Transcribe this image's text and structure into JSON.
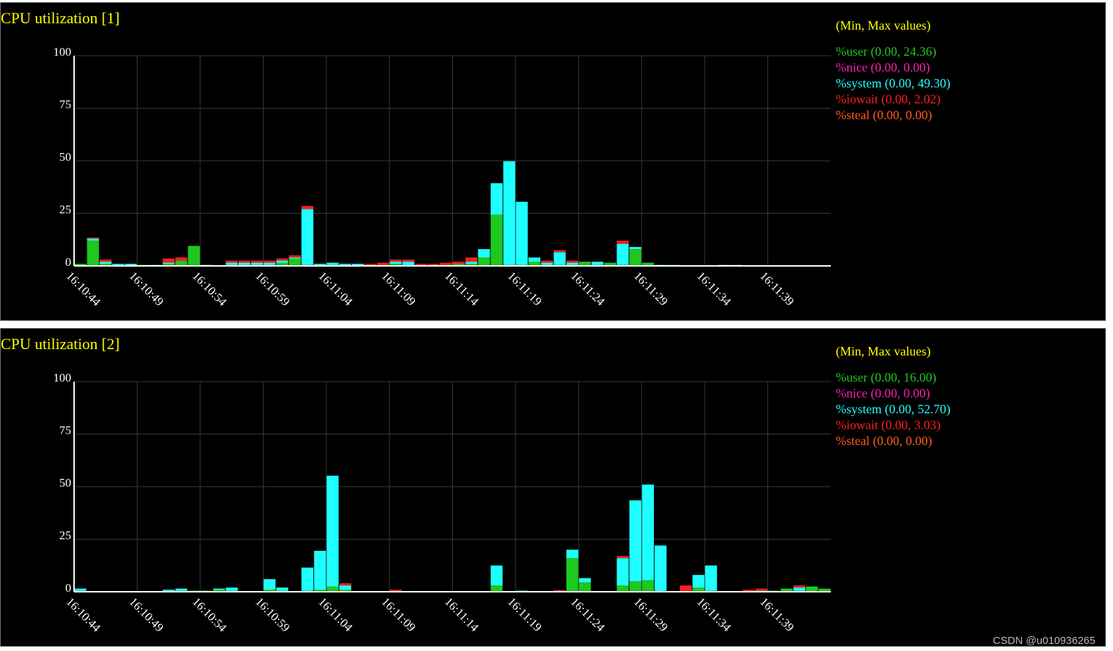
{
  "colors": {
    "title": "#ffff00",
    "user": "#1ec81e",
    "nice": "#ff1eb4",
    "system": "#1effff",
    "iowait": "#ff1e1e",
    "steal": "#ff5a1e",
    "axis": "#ffffff",
    "grid": "#3a3a3a"
  },
  "watermark": "CSDN @u010936265",
  "chart_data": [
    {
      "type": "bar",
      "stacked": true,
      "title": "CPU utilization [1]",
      "legend_title": "(Min, Max values)",
      "legend_placement": "right",
      "grid": true,
      "ylim": [
        0,
        100
      ],
      "yticks": [
        "100",
        "75",
        "50",
        "25",
        "0"
      ],
      "xticks": [
        "16:10:44",
        "16:10:49",
        "16:10:54",
        "16:10:59",
        "16:11:04",
        "16:11:09",
        "16:11:14",
        "16:11:19",
        "16:11:24",
        "16:11:29",
        "16:11:34",
        "16:11:39"
      ],
      "series": [
        {
          "key": "user",
          "name": "%user (0.00, 24.36)",
          "values": [
            1,
            12,
            1,
            0.5,
            0,
            0.5,
            0.5,
            1,
            2.5,
            9.5,
            0.5,
            0,
            0.5,
            0.5,
            0.5,
            0.5,
            1.5,
            3.5,
            0.5,
            0.5,
            0.5,
            0.5,
            0,
            0,
            0.5,
            1,
            0,
            0,
            0,
            0.5,
            1,
            1,
            4,
            24.36,
            0.5,
            0.5,
            2,
            0.5,
            0.5,
            0.5,
            2,
            0.5,
            1.5,
            0.5,
            8,
            1.5,
            0.5,
            0.5,
            0,
            0,
            0,
            0.5,
            0.5,
            0,
            0,
            0,
            0,
            0,
            0,
            0
          ]
        },
        {
          "key": "nice",
          "name": "%nice (0.00, 0.00)",
          "values": [
            0,
            0,
            0,
            0,
            0,
            0,
            0,
            0,
            0,
            0,
            0,
            0,
            0,
            0,
            0,
            0,
            0,
            0,
            0,
            0,
            0,
            0,
            0,
            0,
            0,
            0,
            0,
            0,
            0,
            0,
            0,
            0,
            0,
            0,
            0,
            0,
            0,
            0,
            0,
            0,
            0,
            0,
            0,
            0,
            0,
            0,
            0,
            0,
            0,
            0,
            0,
            0,
            0,
            0,
            0,
            0,
            0,
            0,
            0,
            0
          ]
        },
        {
          "key": "system",
          "name": "%system (0.00, 49.30)",
          "values": [
            0,
            1,
            1,
            0.5,
            1,
            0,
            0,
            0.5,
            0,
            0,
            0,
            0,
            1,
            1,
            1,
            1,
            1,
            0.5,
            26.5,
            0.5,
            1,
            0.5,
            1,
            0,
            0,
            1,
            2,
            0,
            0,
            0,
            0,
            1,
            4,
            15,
            49.3,
            30,
            2,
            1,
            6,
            1,
            0,
            1.5,
            0,
            10,
            1,
            0,
            0,
            0,
            0,
            0,
            0,
            0,
            0,
            0,
            0,
            0,
            0,
            0,
            0,
            0
          ]
        },
        {
          "key": "iowait",
          "name": "%iowait (0.00, 2.02)",
          "values": [
            0,
            0.5,
            1,
            0,
            0,
            0,
            0,
            2,
            1.5,
            0,
            0,
            0,
            1,
            1,
            1,
            1,
            1,
            1,
            1.5,
            0,
            0,
            0,
            0,
            1,
            1,
            1,
            1,
            1,
            1,
            1,
            1,
            2,
            0,
            0,
            0,
            0,
            0,
            1,
            1,
            1,
            0,
            0,
            0,
            1.5,
            0,
            0,
            0,
            0,
            0,
            0,
            0,
            0,
            0,
            0,
            0,
            0,
            0,
            0,
            0,
            0
          ]
        },
        {
          "key": "steal",
          "name": "%steal (0.00, 0.00)",
          "values": [
            0,
            0,
            0,
            0,
            0,
            0,
            0,
            0,
            0,
            0,
            0,
            0,
            0,
            0,
            0,
            0,
            0,
            0,
            0,
            0,
            0,
            0,
            0,
            0,
            0,
            0,
            0,
            0,
            0,
            0,
            0,
            0,
            0,
            0,
            0,
            0,
            0,
            0,
            0,
            0,
            0,
            0,
            0,
            0,
            0,
            0,
            0,
            0,
            0,
            0,
            0,
            0,
            0,
            0,
            0,
            0,
            0,
            0,
            0,
            0
          ]
        }
      ]
    },
    {
      "type": "bar",
      "stacked": true,
      "title": "CPU utilization [2]",
      "legend_title": "(Min, Max values)",
      "legend_placement": "right",
      "grid": true,
      "ylim": [
        0,
        100
      ],
      "yticks": [
        "100",
        "75",
        "50",
        "25",
        "0"
      ],
      "xticks": [
        "16:10:44",
        "16:10:49",
        "16:10:54",
        "16:10:59",
        "16:11:04",
        "16:11:09",
        "16:11:14",
        "16:11:19",
        "16:11:24",
        "16:11:29",
        "16:11:34",
        "16:11:39"
      ],
      "series": [
        {
          "key": "user",
          "name": "%user (0.00, 16.00)",
          "values": [
            0.5,
            0,
            0,
            0,
            0,
            0,
            0,
            0.5,
            0.5,
            0.5,
            0.5,
            1,
            0.5,
            0,
            0,
            1,
            0.5,
            0,
            0.5,
            1,
            2.5,
            1,
            0,
            0,
            0,
            0,
            0,
            0,
            0,
            0,
            0,
            0,
            0,
            3,
            0,
            0,
            0,
            0,
            0,
            16,
            4.5,
            0,
            0,
            3,
            5,
            5.5,
            0,
            0,
            0,
            2,
            0.5,
            0,
            0,
            0,
            0.5,
            0.5,
            1.5,
            0.5,
            2.5,
            1.5
          ]
        },
        {
          "key": "nice",
          "name": "%nice (0.00, 0.00)",
          "values": [
            0,
            0,
            0,
            0,
            0,
            0,
            0,
            0,
            0,
            0,
            0,
            0,
            0,
            0,
            0,
            0,
            0,
            0,
            0,
            0,
            0,
            0,
            0,
            0,
            0,
            0,
            0,
            0,
            0,
            0,
            0,
            0,
            0,
            0,
            0,
            0,
            0,
            0,
            0,
            0,
            0,
            0,
            0,
            0,
            0,
            0,
            0,
            0,
            0,
            0,
            0,
            0,
            0,
            0,
            0,
            0,
            0,
            0,
            0,
            0
          ]
        },
        {
          "key": "system",
          "name": "%system (0.00, 52.70)",
          "values": [
            1,
            0,
            0,
            0,
            0,
            0,
            0,
            0.5,
            1,
            0,
            0,
            0.5,
            1.5,
            0,
            0,
            5,
            1.5,
            0,
            11,
            18.5,
            52.7,
            2,
            0,
            0,
            0,
            0,
            0,
            0,
            0,
            0,
            0,
            0,
            0,
            9.5,
            0,
            0.5,
            0,
            0,
            0,
            4,
            2,
            0,
            0,
            13,
            38.5,
            45.5,
            22,
            0,
            0,
            6,
            12,
            0,
            0,
            0,
            0,
            0,
            0,
            1.5,
            0,
            0
          ]
        },
        {
          "key": "iowait",
          "name": "%iowait (0.00, 3.03)",
          "values": [
            0,
            0,
            0,
            0,
            0,
            0,
            0,
            0,
            0,
            0,
            0,
            0,
            0,
            0,
            0,
            0,
            0,
            0,
            0,
            0,
            0,
            1,
            0,
            0,
            0,
            1,
            0,
            0,
            0,
            0,
            0,
            0,
            0,
            0,
            0,
            0,
            0,
            0,
            0.8,
            0,
            0,
            0,
            0,
            1,
            0,
            0,
            0,
            0,
            3,
            0,
            0,
            0,
            0,
            1,
            1,
            0,
            0,
            1,
            0,
            0
          ]
        },
        {
          "key": "steal",
          "name": "%steal (0.00, 0.00)",
          "values": [
            0,
            0,
            0,
            0,
            0,
            0,
            0,
            0,
            0,
            0,
            0,
            0,
            0,
            0,
            0,
            0,
            0,
            0,
            0,
            0,
            0,
            0,
            0,
            0,
            0,
            0,
            0,
            0,
            0,
            0,
            0,
            0,
            0,
            0,
            0,
            0,
            0,
            0,
            0,
            0,
            0,
            0,
            0,
            0,
            0,
            0,
            0,
            0,
            0,
            0,
            0,
            0,
            0,
            0,
            0,
            0,
            0,
            0,
            0,
            0
          ]
        }
      ]
    }
  ]
}
